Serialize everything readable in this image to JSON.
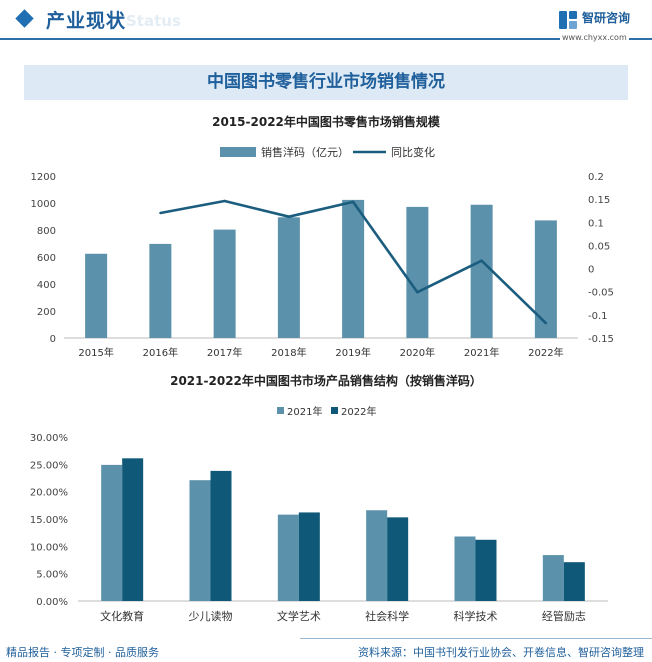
{
  "header": {
    "title": "产业现状",
    "watermark_text": "Status",
    "brand_name": "智研咨询",
    "brand_url": "www.chyxx.com"
  },
  "banner": {
    "title": "中国图书零售行业市场销售情况"
  },
  "chart_data": [
    {
      "type": "bar+line",
      "title": "2015-2022年中国图书零售市场销售规模",
      "categories": [
        "2015年",
        "2016年",
        "2017年",
        "2018年",
        "2019年",
        "2020年",
        "2021年",
        "2022年"
      ],
      "series": [
        {
          "name": "销售洋码（亿元）",
          "type": "bar",
          "axis": "left",
          "color": "#5b91aa",
          "values": [
            624,
            697,
            803,
            894,
            1023,
            971,
            987,
            871
          ]
        },
        {
          "name": "同比变化",
          "type": "line",
          "axis": "right",
          "color": "#1b5d7e",
          "values": [
            null,
            0.12,
            0.146,
            0.112,
            0.144,
            -0.051,
            0.017,
            -0.118
          ]
        }
      ],
      "y_left": {
        "min": 0,
        "max": 1200,
        "ticks": [
          "0",
          "200",
          "400",
          "600",
          "800",
          "1000",
          "1200"
        ]
      },
      "y_right": {
        "min": -0.15,
        "max": 0.2,
        "ticks": [
          "-0.15",
          "-0.1",
          "-0.05",
          "0",
          "0.05",
          "0.1",
          "0.15",
          "0.2"
        ]
      },
      "legend_position": "top-center",
      "grid": false
    },
    {
      "type": "bar",
      "title": "2021-2022年中国图书市场产品销售结构（按销售洋码）",
      "categories": [
        "文化教育",
        "少儿读物",
        "文学艺术",
        "社会科学",
        "科学技术",
        "经管励志"
      ],
      "series": [
        {
          "name": "2021年",
          "color": "#5b91aa",
          "values": [
            24.9,
            22.1,
            15.8,
            16.6,
            11.8,
            8.4
          ]
        },
        {
          "name": "2022年",
          "color": "#0f5878",
          "values": [
            26.1,
            23.8,
            16.2,
            15.3,
            11.2,
            7.1
          ]
        }
      ],
      "y": {
        "min": 0,
        "max": 30,
        "ticks": [
          "0.00%",
          "5.00%",
          "10.00%",
          "15.00%",
          "20.00%",
          "25.00%",
          "30.00%"
        ]
      },
      "legend_position": "top-center",
      "grid": false
    }
  ],
  "footer": {
    "left": "精品报告 · 专项定制 · 品质服务",
    "source": "资料来源：中国书刊发行业协会、开卷信息、智研咨询整理"
  }
}
